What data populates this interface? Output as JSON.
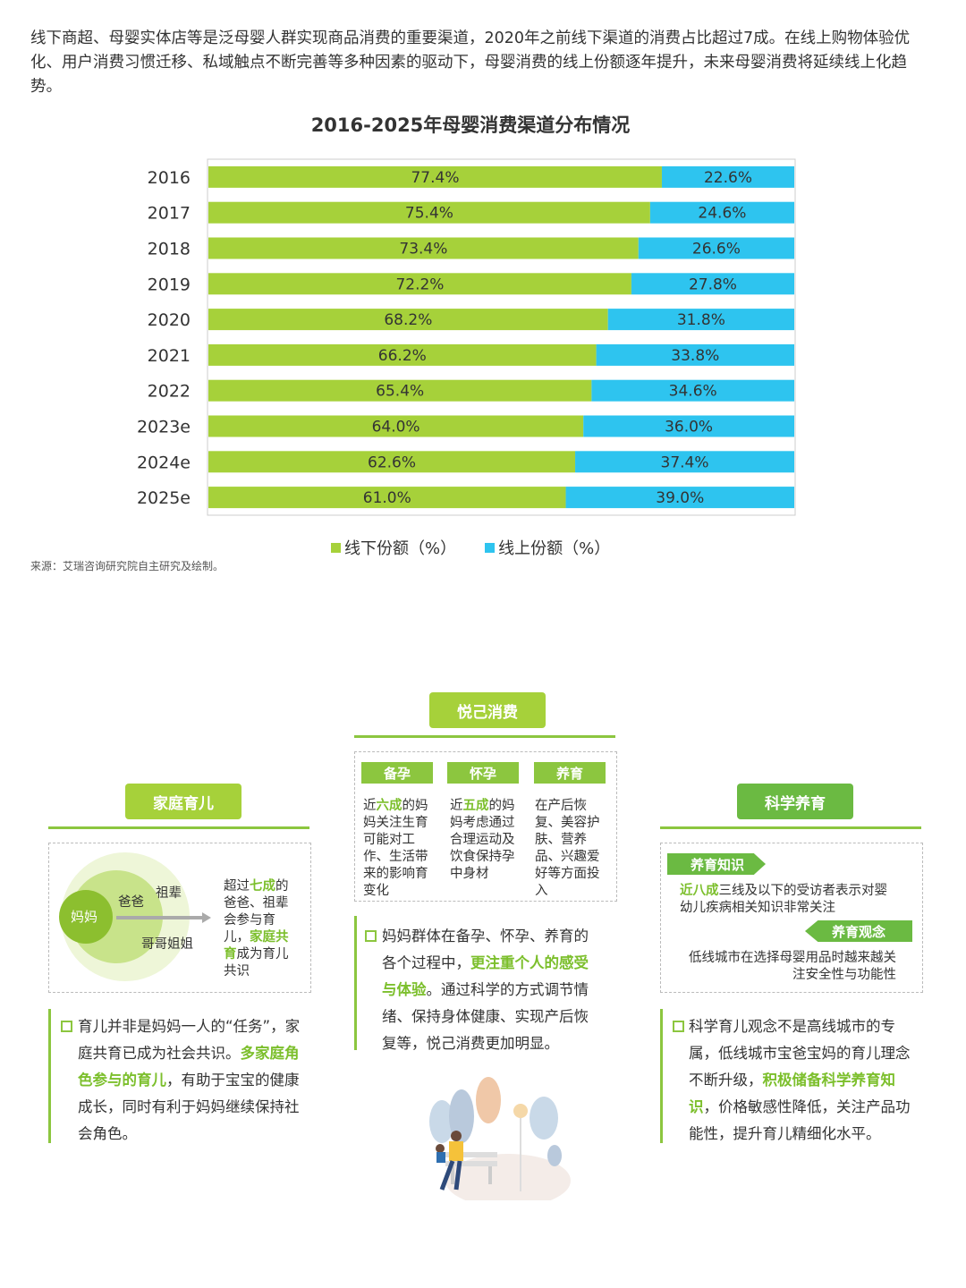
{
  "intro": "线下商超、母婴实体店等是泛母婴人群实现商品消费的重要渠道，2020年之前线下渠道的消费占比超过7成。在线上购物体验优化、用户消费习惯迁移、私域触点不断完善等多种因素的驱动下，母婴消费的线上份额逐年提升，未来母婴消费将延续线上化趋势。",
  "source": "来源：艾瑞咨询研究院自主研究及绘制。",
  "chart_data": {
    "type": "bar",
    "stacked": true,
    "orientation": "horizontal",
    "title": "2016-2025年母婴消费渠道分布情况",
    "categories": [
      "2016",
      "2017",
      "2018",
      "2019",
      "2020",
      "2021",
      "2022",
      "2023e",
      "2024e",
      "2025e"
    ],
    "series": [
      {
        "name": "线下份额（%）",
        "values": [
          77.4,
          75.4,
          73.4,
          72.2,
          68.2,
          66.2,
          65.4,
          64.0,
          62.6,
          61.0
        ],
        "labels": [
          "77.4%",
          "75.4%",
          "73.4%",
          "72.2%",
          "68.2%",
          "66.2%",
          "65.4%",
          "64.0%",
          "62.6%",
          "61.0%"
        ],
        "color": "#a6d13a"
      },
      {
        "name": "线上份额（%）",
        "values": [
          22.6,
          24.6,
          26.6,
          27.8,
          31.8,
          33.8,
          34.6,
          36.0,
          37.4,
          39.0
        ],
        "labels": [
          "22.6%",
          "24.6%",
          "26.6%",
          "27.8%",
          "31.8%",
          "33.8%",
          "34.6%",
          "36.0%",
          "37.4%",
          "39.0%"
        ],
        "color": "#2ec4ef"
      }
    ],
    "xlim": [
      0,
      100
    ],
    "legend": "bottom"
  },
  "family": {
    "title": "家庭育儿",
    "circle_mom": "妈妈",
    "circle_dad": "爸爸",
    "circle_grand": "祖辈",
    "circle_siblings": "哥哥姐姐",
    "note_1": "超过",
    "note_hl1": "七成",
    "note_2": "的爸爸、祖辈会参与育儿，",
    "note_hl2": "家庭共育",
    "note_3": "成为育儿共识",
    "para_1": "育儿并非是妈妈一人的“任务”，家庭共育已成为社会共识。",
    "para_hl": "多家庭角色参与的育儿",
    "para_2": "，有助于宝宝的健康成长，同时有利于妈妈继续保持社会角色。"
  },
  "self": {
    "title": "悦己消费",
    "tag1": "备孕",
    "tag2": "怀孕",
    "tag3": "养育",
    "c1_a": "近",
    "c1_hl": "六成",
    "c1_b": "的妈妈关注生育可能对工作、生活带来的影响育变化",
    "c2_a": "近",
    "c2_hl": "五成",
    "c2_b": "的妈妈考虑通过合理运动及饮食保持孕中身材",
    "c3": "在产后恢复、美容护肤、营养品、兴趣爱好等方面投入",
    "para_1": "妈妈群体在备孕、怀孕、养育的各个过程中，",
    "para_hl": "更注重个人的感受与体验",
    "para_2": "。通过科学的方式调节情绪、保持身体健康、实现产后恢复等，悦己消费更加明显。"
  },
  "science": {
    "title": "科学养育",
    "tag1": "养育知识",
    "tag2": "养育观念",
    "t1_hl": "近八成",
    "t1": "三线及以下的受访者表示对婴幼儿疾病相关知识非常关注",
    "t2": "低线城市在选择母婴用品时越来越关注安全性与功能性",
    "para_1": "科学育儿观念不是高线城市的专属，低线城市宝爸宝妈的育儿理念不断升级，",
    "para_hl": "积极储备科学养育知识",
    "para_2": "，价格敏感性降低，关注产品功能性，提升育儿精细化水平。"
  }
}
